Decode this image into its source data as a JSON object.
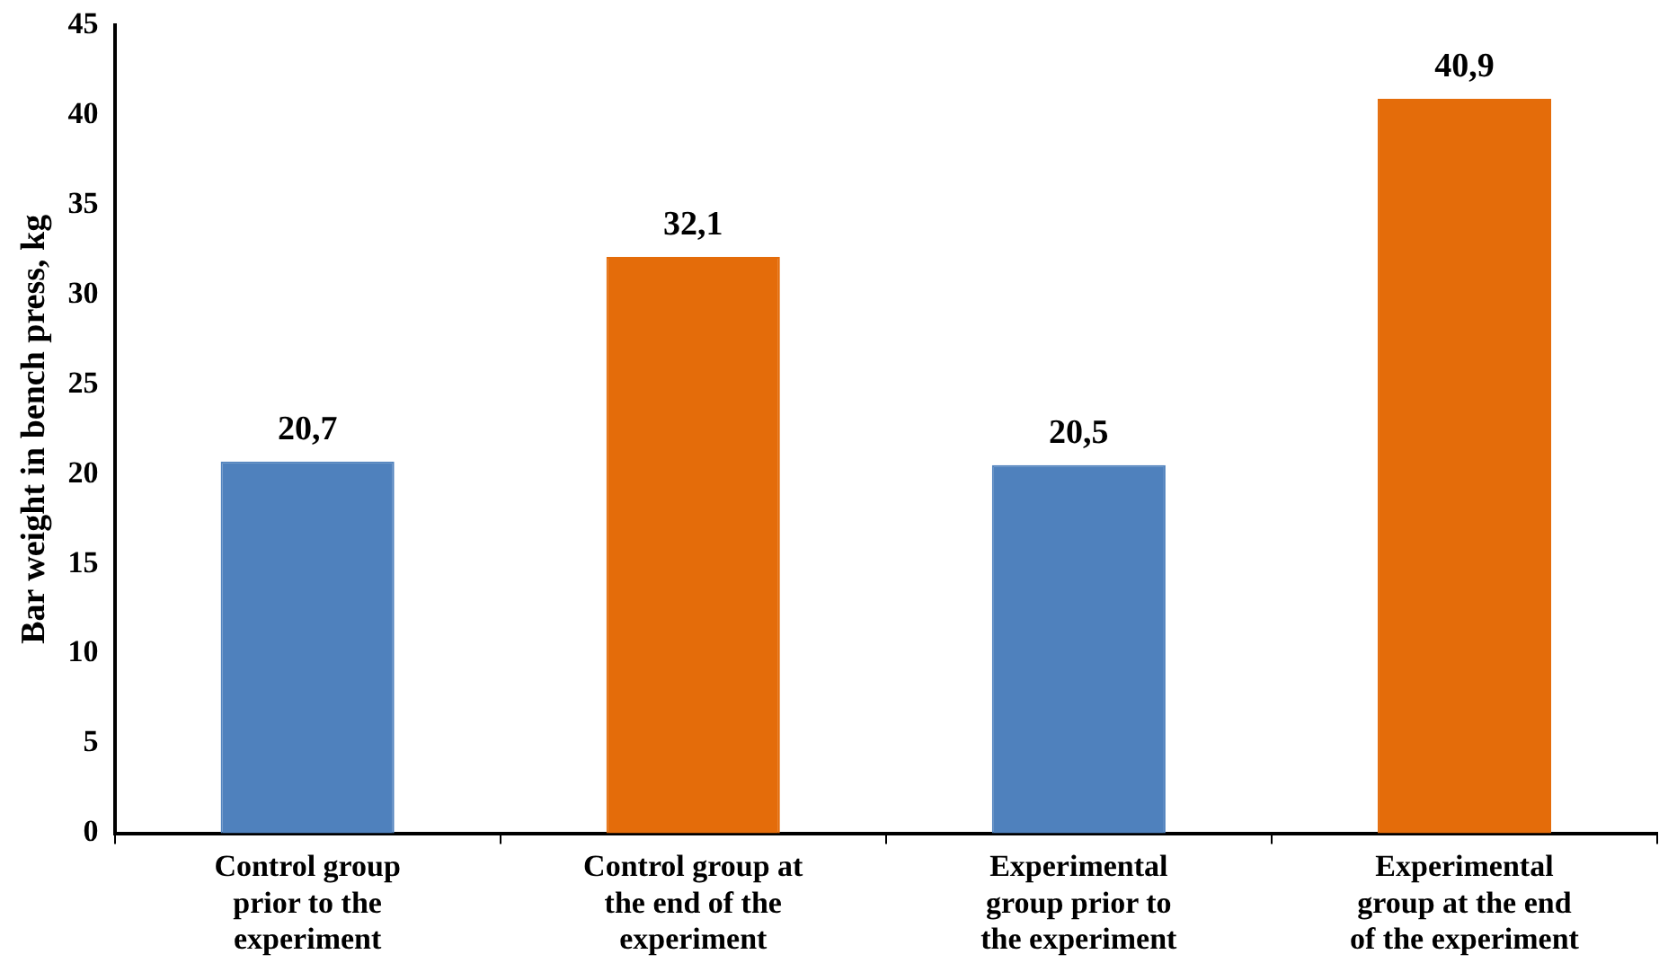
{
  "chart_data": {
    "type": "bar",
    "ylabel": "Bar weight in bench press, kg",
    "categories": [
      "Control group prior to the experiment",
      "Control group at the end of the experiment",
      "Experimental group prior to the experiment",
      "Experimental group at the end of the experiment"
    ],
    "values": [
      20.7,
      32.1,
      20.5,
      40.9
    ],
    "colors": [
      "#4f81bd",
      "#e46c0a",
      "#4f81bd",
      "#e46c0a"
    ],
    "value_labels": [
      "20,7",
      "32,1",
      "20,5",
      "40,9"
    ],
    "ylim": [
      0,
      45
    ],
    "yticks": [
      0,
      5,
      10,
      15,
      20,
      25,
      30,
      35,
      40,
      45
    ],
    "grid": false,
    "legend": false
  }
}
